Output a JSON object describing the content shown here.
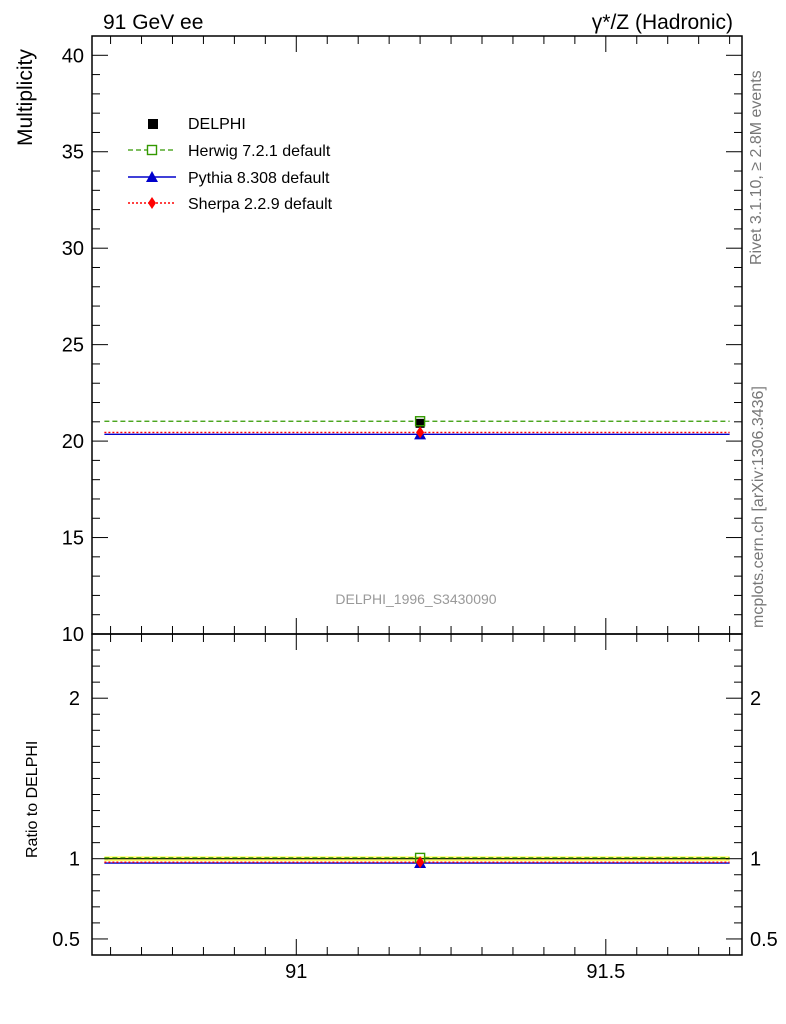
{
  "header": {
    "left": "91 GeV ee",
    "right": "γ*/Z (Hadronic)"
  },
  "side_labels": {
    "rivet": "Rivet 3.1.10, ≥ 2.8M events",
    "mcplots": "mcplots.cern.ch [arXiv:1306.3436]"
  },
  "watermark": "DELPHI_1996_S3430090",
  "colors": {
    "delphi": "#000000",
    "herwig": "#339900",
    "pythia": "#0000cc",
    "sherpa": "#ff0000",
    "band": "#ffff66"
  },
  "legend": {
    "delphi": "DELPHI",
    "herwig": "Herwig 7.2.1 default",
    "pythia": "Pythia 8.308 default",
    "sherpa": "Sherpa 2.2.9 default"
  },
  "chart_data": [
    {
      "type": "scatter",
      "panel": "main",
      "ylabel": "Multiplicity",
      "xlim": [
        90.67,
        91.72
      ],
      "ylim": [
        10,
        41
      ],
      "x_ticks": [
        91,
        91.5
      ],
      "y_ticks": [
        {
          "v": 10,
          "label": "10"
        },
        {
          "v": 15,
          "label": "15"
        },
        {
          "v": 20,
          "label": "20"
        },
        {
          "v": 25,
          "label": "25"
        },
        {
          "v": 30,
          "label": "30"
        },
        {
          "v": 35,
          "label": "35"
        },
        {
          "v": 40,
          "label": "40"
        }
      ],
      "bin": [
        90.69,
        91.7
      ],
      "series": [
        {
          "name": "DELPHI",
          "x": 91.2,
          "y": 20.92
        },
        {
          "name": "Herwig 7.2.1 default",
          "x": 91.2,
          "y": 21.03
        },
        {
          "name": "Pythia 8.308 default",
          "x": 91.2,
          "y": 20.35
        },
        {
          "name": "Sherpa 2.2.9 default",
          "x": 91.2,
          "y": 20.45
        }
      ]
    },
    {
      "type": "scatter",
      "panel": "ratio",
      "ylabel": "Ratio to DELPHI",
      "xlim": [
        90.67,
        91.72
      ],
      "ylim": [
        0.4,
        2.4
      ],
      "x_ticks": [
        {
          "v": 91,
          "label": "91"
        },
        {
          "v": 91.5,
          "label": "91.5"
        }
      ],
      "y_ticks": [
        {
          "v": 0.5,
          "label": "0.5"
        },
        {
          "v": 1,
          "label": "1"
        },
        {
          "v": 2,
          "label": "2"
        }
      ],
      "band": [
        0.985,
        1.015
      ],
      "series": [
        {
          "name": "Herwig 7.2.1 default",
          "x": 91.2,
          "y": 1.005
        },
        {
          "name": "Pythia 8.308 default",
          "x": 91.2,
          "y": 0.973
        },
        {
          "name": "Sherpa 2.2.9 default",
          "x": 91.2,
          "y": 0.978
        }
      ]
    }
  ]
}
